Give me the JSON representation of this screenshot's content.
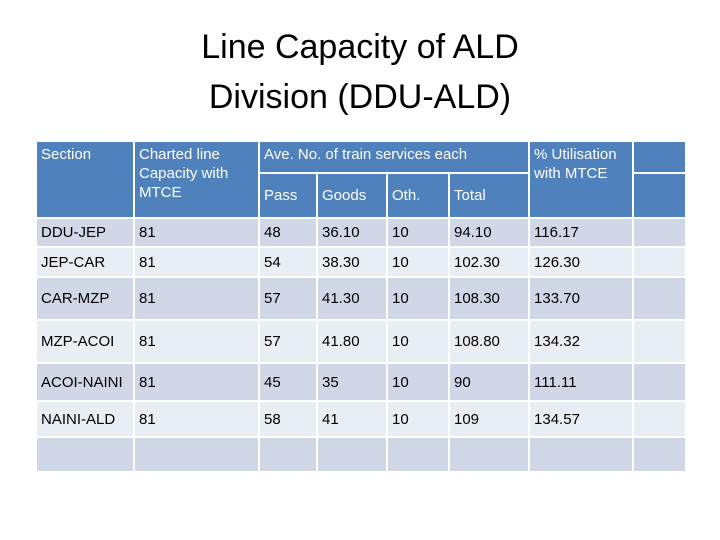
{
  "header": {
    "title": "Line Capacity of ALD Division (DDU-ALD)"
  },
  "table": {
    "columns": {
      "section": "Section",
      "charted": "Charted line Capacity with MTCE",
      "average": "Ave. No. of train services each",
      "pass": "Pass",
      "goods": "Goods",
      "oth": "Oth.",
      "total": "Total",
      "utilisation": "% Utilisation with MTCE"
    },
    "rows": [
      [
        "DDU-JEP",
        "81",
        "48",
        "36.10",
        "10",
        "94.10",
        "116.17"
      ],
      [
        "JEP-CAR",
        "81",
        "54",
        "38.30",
        "10",
        "102.30",
        "126.30"
      ],
      [
        "CAR-MZP",
        "81",
        "57",
        "41.30",
        "10",
        "108.30",
        "133.70"
      ],
      [
        "MZP-ACOI",
        "81",
        "57",
        "41.80",
        "10",
        "108.80",
        "134.32"
      ],
      [
        "ACOI-NAINI",
        "81",
        "45",
        "35",
        "10",
        "90",
        "111.11"
      ],
      [
        "NAINI-ALD",
        "81",
        "58",
        "41",
        "10",
        "109",
        "134.57"
      ]
    ]
  }
}
